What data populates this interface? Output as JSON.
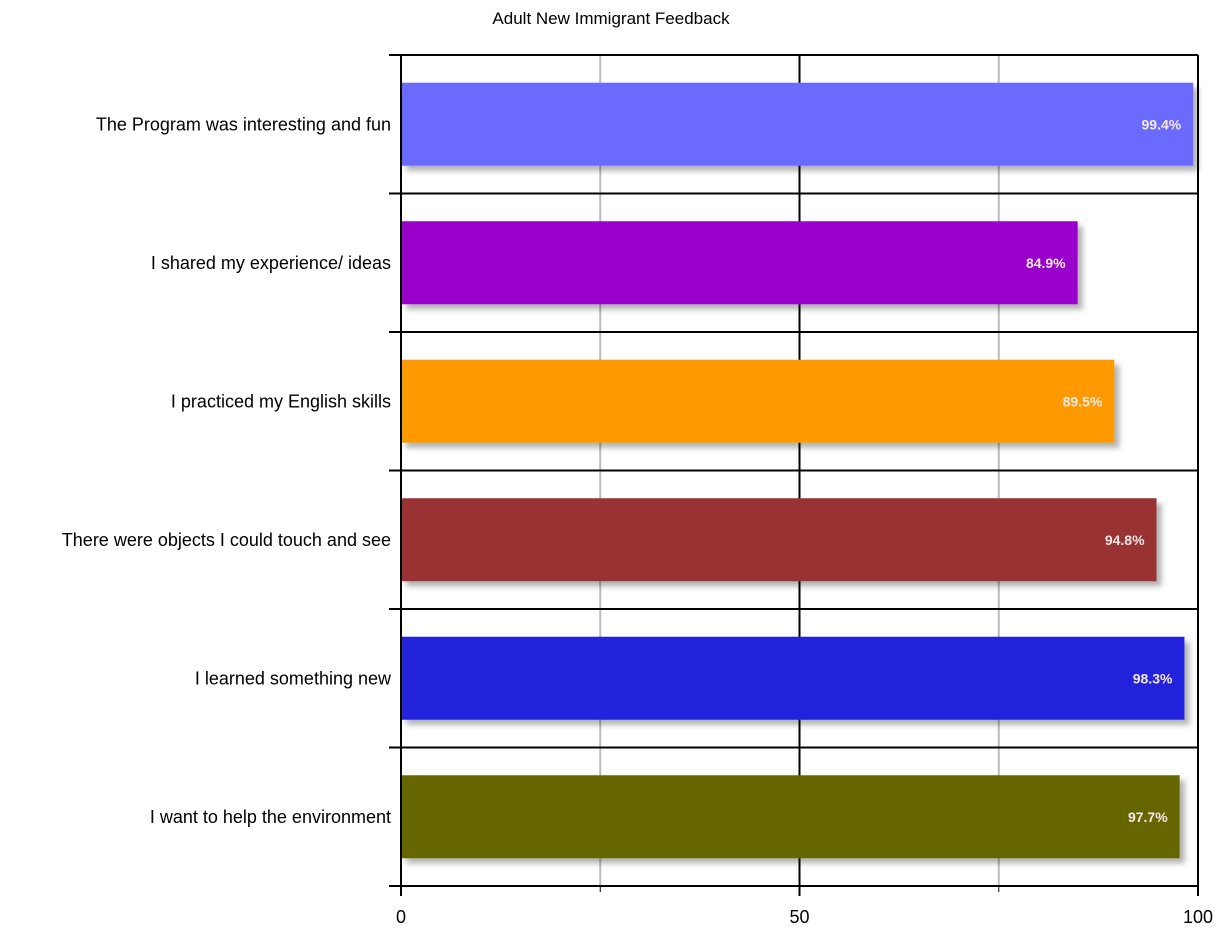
{
  "chart_data": {
    "type": "bar",
    "orientation": "horizontal",
    "title": "Adult New Immigrant Feedback",
    "xlabel": "",
    "ylabel": "",
    "xlim": [
      0,
      100
    ],
    "x_ticks": [
      0,
      50,
      100
    ],
    "minor_gridlines": [
      25,
      75
    ],
    "grid": true,
    "legend": "none",
    "categories": [
      "The Program was interesting and fun",
      "I shared my experience/ ideas",
      "I practiced my English skills",
      "There were objects I could touch and see",
      "I learned something new",
      "I want to help the environment"
    ],
    "values": [
      99.4,
      84.9,
      89.5,
      94.8,
      98.3,
      97.7
    ],
    "data_labels": [
      "99.4%",
      "84.9%",
      "89.5%",
      "94.8%",
      "98.3%",
      "97.7%"
    ],
    "colors": [
      "#6b6bff",
      "#9900cc",
      "#ff9900",
      "#993333",
      "#2020dd",
      "#666600"
    ]
  }
}
